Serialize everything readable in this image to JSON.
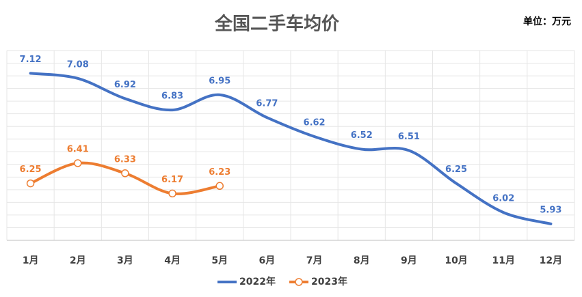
{
  "chart_data": {
    "type": "line",
    "title": "全国二手车均价",
    "unit_label": "单位：万元",
    "categories": [
      "1月",
      "2月",
      "3月",
      "4月",
      "5月",
      "6月",
      "7月",
      "8月",
      "9月",
      "10月",
      "11月",
      "12月"
    ],
    "series": [
      {
        "name": "2022年",
        "color": "#4472c4",
        "values": [
          7.12,
          7.08,
          6.92,
          6.83,
          6.95,
          6.77,
          6.62,
          6.52,
          6.51,
          6.25,
          6.02,
          5.93
        ]
      },
      {
        "name": "2023年",
        "color": "#ed7d31",
        "values": [
          6.25,
          6.41,
          6.33,
          6.17,
          6.23,
          null,
          null,
          null,
          null,
          null,
          null,
          null
        ]
      }
    ],
    "ylim": [
      5.8,
      7.3
    ],
    "smooth": true
  }
}
